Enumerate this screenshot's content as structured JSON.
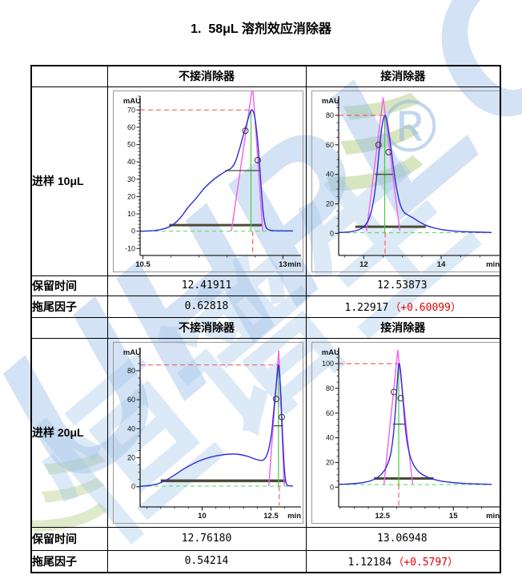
{
  "page": {
    "title": "1.  58μL 溶剂效应消除器"
  },
  "watermark": {
    "brand": "UHPLC",
    "cn": "恒谱生",
    "registered": "®",
    "accent": "彡",
    "blue": "#92b6e3",
    "green": "#b8d18c"
  },
  "colors": {
    "curve_blue": "#2c2cd6",
    "tangent_magenta": "#f060f0",
    "dash_red": "#f06060",
    "dash_green": "#5ee05e",
    "solid_green": "#44cc44",
    "width_line_olive": "#4a4a36",
    "delta_red": "#e00000"
  },
  "table": {
    "sections": [
      {
        "col_headers": [
          "不接消除器",
          "接消除器"
        ],
        "row_label": "进样 10μL",
        "metrics": [
          {
            "label": "保留时间",
            "no_eliminator": "12.41911",
            "with_eliminator": "12.53873",
            "delta": ""
          },
          {
            "label": "拖尾因子",
            "no_eliminator": "0.62818",
            "with_eliminator": "1.22917",
            "delta": "（+0.60099）"
          }
        ]
      },
      {
        "col_headers": [
          "不接消除器",
          "接消除器"
        ],
        "row_label": "进样 20μL",
        "metrics": [
          {
            "label": "保留时间",
            "no_eliminator": "12.76180",
            "with_eliminator": "13.06948",
            "delta": ""
          },
          {
            "label": "拖尾因子",
            "no_eliminator": "0.54214",
            "with_eliminator": "1.12184",
            "delta": "（+0.5797）"
          }
        ]
      }
    ]
  },
  "chart_data": [
    {
      "type": "line",
      "name": "进样10μL 不接消除器",
      "ylabel": "mAU",
      "xlabel": "min",
      "xlim": [
        10.45,
        13.18
      ],
      "ylim": [
        -14,
        78
      ],
      "x_ticks": [
        10.5,
        13
      ],
      "x_tick_labels": [
        "10.5",
        "13"
      ],
      "y_ticks": [
        -10,
        0,
        10,
        20,
        30,
        40,
        50,
        60,
        70
      ],
      "x_minor_step": 0.5,
      "y_minor_step": 2,
      "peak_x": 12.44,
      "peak_mAU": 70,
      "green_baseline": 0,
      "red_h_line": 70,
      "red_v_line_x": 12.46,
      "green_v_line": {
        "x": 12.43,
        "y0": 0,
        "y1": 70
      },
      "half_height_line": {
        "y": 35,
        "x0": 11.97,
        "x1": 12.58
      },
      "base_width_line": {
        "y": 3.5,
        "x0": 10.97,
        "x1": 12.63,
        "w": 3
      },
      "triangle": {
        "apex": [
          12.46,
          84
        ],
        "left_base": [
          12.08,
          0
        ],
        "right_base": [
          12.64,
          0
        ]
      },
      "markers": [
        [
          12.33,
          58
        ],
        [
          12.55,
          41
        ]
      ],
      "curve": [
        [
          10.45,
          0
        ],
        [
          10.7,
          0.4
        ],
        [
          10.85,
          1.2
        ],
        [
          11.0,
          3
        ],
        [
          11.1,
          5.5
        ],
        [
          11.2,
          9
        ],
        [
          11.3,
          13.5
        ],
        [
          11.45,
          19
        ],
        [
          11.6,
          25
        ],
        [
          11.75,
          29.5
        ],
        [
          11.9,
          33
        ],
        [
          12.0,
          35
        ],
        [
          12.08,
          36.5
        ],
        [
          12.15,
          40
        ],
        [
          12.22,
          47
        ],
        [
          12.28,
          54
        ],
        [
          12.33,
          59.5
        ],
        [
          12.38,
          65
        ],
        [
          12.42,
          69
        ],
        [
          12.45,
          70
        ],
        [
          12.49,
          67
        ],
        [
          12.53,
          58
        ],
        [
          12.57,
          44
        ],
        [
          12.61,
          26
        ],
        [
          12.65,
          10
        ],
        [
          12.69,
          3
        ],
        [
          12.74,
          1
        ],
        [
          12.85,
          0.3
        ],
        [
          13.18,
          0.2
        ]
      ]
    },
    {
      "type": "line",
      "name": "进样10μL 接消除器",
      "ylabel": "mAU",
      "xlabel": "min",
      "xlim": [
        11.35,
        15.3
      ],
      "ylim": [
        -15,
        93
      ],
      "x_ticks": [
        12,
        14
      ],
      "x_tick_labels": [
        "12",
        "14"
      ],
      "y_ticks": [
        0,
        20,
        40,
        60,
        80
      ],
      "x_minor_step": 0.5,
      "y_minor_step": 5,
      "peak_x": 12.54,
      "peak_mAU": 80,
      "green_baseline": 0.4,
      "red_h_line": 80,
      "red_v_line_x": 12.55,
      "green_v_line": {
        "x": 12.54,
        "y0": 0.4,
        "y1": 80
      },
      "half_height_line": {
        "y": 40,
        "x0": 12.29,
        "x1": 12.75
      },
      "base_width_line": {
        "y": 4.5,
        "x0": 11.78,
        "x1": 13.6,
        "w": 3
      },
      "triangle": {
        "apex": [
          12.5,
          92
        ],
        "left_base": [
          12.07,
          1.5
        ],
        "right_base": [
          12.93,
          1.5
        ]
      },
      "markers": [
        [
          12.38,
          60
        ],
        [
          12.64,
          55
        ]
      ],
      "curve": [
        [
          11.35,
          0.5
        ],
        [
          11.6,
          0.9
        ],
        [
          11.8,
          1.8
        ],
        [
          11.95,
          3.5
        ],
        [
          12.05,
          6
        ],
        [
          12.15,
          11
        ],
        [
          12.25,
          22
        ],
        [
          12.33,
          38
        ],
        [
          12.4,
          57
        ],
        [
          12.46,
          71
        ],
        [
          12.51,
          78
        ],
        [
          12.55,
          80
        ],
        [
          12.6,
          76
        ],
        [
          12.66,
          66
        ],
        [
          12.73,
          52
        ],
        [
          12.8,
          38
        ],
        [
          12.88,
          26
        ],
        [
          12.96,
          18
        ],
        [
          13.05,
          14
        ],
        [
          13.15,
          12.3
        ],
        [
          13.3,
          10
        ],
        [
          13.45,
          7.5
        ],
        [
          13.6,
          5.5
        ],
        [
          13.8,
          3.8
        ],
        [
          14.0,
          2.6
        ],
        [
          14.3,
          1.6
        ],
        [
          14.7,
          1
        ],
        [
          15.3,
          0.6
        ]
      ]
    },
    {
      "type": "line",
      "name": "进样20μL 不接消除器",
      "ylabel": "mAU",
      "xlabel": "min",
      "xlim": [
        7.75,
        13.3
      ],
      "ylim": [
        -14,
        96
      ],
      "x_ticks": [
        10,
        12.5
      ],
      "x_tick_labels": [
        "10",
        "12.5"
      ],
      "y_ticks": [
        0,
        20,
        40,
        60,
        80
      ],
      "x_minor_step": 0.5,
      "y_minor_step": 5,
      "peak_x": 12.77,
      "peak_mAU": 84,
      "green_baseline": 0.3,
      "red_h_line": 84,
      "red_v_line_x": 12.8,
      "green_v_line": {
        "x": 12.77,
        "y0": 0.3,
        "y1": 84
      },
      "half_height_line": {
        "y": 42,
        "x0": 12.6,
        "x1": 12.94
      },
      "base_width_line": {
        "y": 4,
        "x0": 8.5,
        "x1": 13.05,
        "w": 3.5
      },
      "triangle": {
        "apex": [
          12.78,
          94
        ],
        "left_base": [
          12.42,
          0.5
        ],
        "right_base": [
          12.98,
          0.5
        ]
      },
      "markers": [
        [
          12.69,
          60.5
        ],
        [
          12.89,
          48
        ]
      ],
      "curve": [
        [
          7.75,
          0.2
        ],
        [
          8.1,
          0.8
        ],
        [
          8.4,
          2
        ],
        [
          8.7,
          4.5
        ],
        [
          9.0,
          8
        ],
        [
          9.3,
          11.8
        ],
        [
          9.6,
          15
        ],
        [
          9.9,
          17.8
        ],
        [
          10.2,
          19.8
        ],
        [
          10.5,
          21.2
        ],
        [
          10.8,
          22.1
        ],
        [
          11.1,
          22.5
        ],
        [
          11.35,
          22.2
        ],
        [
          11.6,
          21.2
        ],
        [
          11.8,
          19.9
        ],
        [
          12.0,
          18.6
        ],
        [
          12.12,
          18.1
        ],
        [
          12.22,
          18.4
        ],
        [
          12.32,
          20.5
        ],
        [
          12.42,
          26
        ],
        [
          12.52,
          37
        ],
        [
          12.6,
          52
        ],
        [
          12.68,
          68
        ],
        [
          12.73,
          78
        ],
        [
          12.77,
          84
        ],
        [
          12.81,
          79
        ],
        [
          12.86,
          62
        ],
        [
          12.9,
          44
        ],
        [
          12.95,
          24
        ],
        [
          13.0,
          9
        ],
        [
          13.05,
          2.5
        ],
        [
          13.12,
          0.8
        ],
        [
          13.3,
          0.4
        ]
      ]
    },
    {
      "type": "line",
      "name": "进样20μL 接消除器",
      "ylabel": "mAU",
      "xlabel": "min",
      "xlim": [
        10.95,
        16.35
      ],
      "ylim": [
        -16,
        113
      ],
      "x_ticks": [
        12.5,
        15
      ],
      "x_tick_labels": [
        "12.5",
        "15"
      ],
      "y_ticks": [
        0,
        20,
        40,
        60,
        80,
        100
      ],
      "x_minor_step": 0.5,
      "y_minor_step": 5,
      "peak_x": 13.07,
      "peak_mAU": 100,
      "green_baseline": 2,
      "red_h_line": 100,
      "red_v_line_x": 13.07,
      "green_v_line": {
        "x": 13.07,
        "y0": 2,
        "y1": 100
      },
      "half_height_line": {
        "y": 51,
        "x0": 12.86,
        "x1": 13.31
      },
      "base_width_line": {
        "y": 7,
        "x0": 12.2,
        "x1": 14.3,
        "w": 3
      },
      "triangle": {
        "apex": [
          13.04,
          111
        ],
        "left_base": [
          12.55,
          2.5
        ],
        "right_base": [
          13.56,
          2.5
        ]
      },
      "markers": [
        [
          12.9,
          77
        ],
        [
          13.14,
          72
        ]
      ],
      "curve": [
        [
          10.95,
          2.3
        ],
        [
          11.3,
          2.6
        ],
        [
          11.6,
          3.1
        ],
        [
          11.85,
          3.9
        ],
        [
          12.1,
          5.3
        ],
        [
          12.3,
          7.5
        ],
        [
          12.5,
          11.5
        ],
        [
          12.65,
          17
        ],
        [
          12.78,
          26
        ],
        [
          12.88,
          42
        ],
        [
          12.96,
          64
        ],
        [
          13.02,
          85
        ],
        [
          13.06,
          97
        ],
        [
          13.09,
          100
        ],
        [
          13.13,
          95
        ],
        [
          13.19,
          80
        ],
        [
          13.26,
          60
        ],
        [
          13.33,
          43
        ],
        [
          13.42,
          30
        ],
        [
          13.52,
          22
        ],
        [
          13.65,
          16
        ],
        [
          13.8,
          12
        ],
        [
          14.0,
          9
        ],
        [
          14.25,
          6.8
        ],
        [
          14.55,
          5
        ],
        [
          14.9,
          3.9
        ],
        [
          15.4,
          3
        ],
        [
          16.35,
          2.3
        ]
      ]
    }
  ]
}
